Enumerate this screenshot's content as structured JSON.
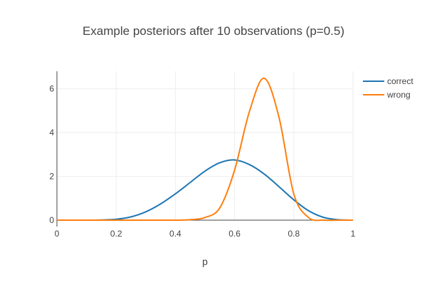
{
  "chart_data": {
    "type": "line",
    "title": "Example posteriors after 10 observations (p=0.5)",
    "xlabel": "p",
    "ylabel": "",
    "xlim": [
      0,
      1
    ],
    "ylim": [
      0,
      6.8
    ],
    "x_ticks": [
      "0",
      "0.2",
      "0.4",
      "0.6",
      "0.8",
      "1"
    ],
    "y_ticks": [
      "0",
      "2",
      "4",
      "6"
    ],
    "grid": true,
    "legend_position": "top-right",
    "x": [
      0,
      0.05,
      0.1,
      0.15,
      0.2,
      0.25,
      0.3,
      0.35,
      0.4,
      0.45,
      0.5,
      0.55,
      0.6,
      0.65,
      0.7,
      0.75,
      0.8,
      0.85,
      0.9,
      0.95,
      1
    ],
    "series": [
      {
        "name": "correct",
        "color": "#1f77b4",
        "values": [
          0,
          0.0,
          0.0,
          0.01,
          0.04,
          0.15,
          0.38,
          0.74,
          1.2,
          1.72,
          2.24,
          2.62,
          2.75,
          2.54,
          2.11,
          1.53,
          0.93,
          0.43,
          0.13,
          0.02,
          0
        ]
      },
      {
        "name": "wrong",
        "color": "#ff7f0e",
        "values": [
          0,
          0.0,
          0.0,
          0.0,
          0.0,
          0.0,
          0.0,
          0.0,
          0.0,
          0.02,
          0.12,
          0.56,
          2.28,
          4.95,
          6.48,
          4.7,
          1.2,
          0.12,
          0.0,
          0.0,
          0
        ]
      }
    ]
  }
}
